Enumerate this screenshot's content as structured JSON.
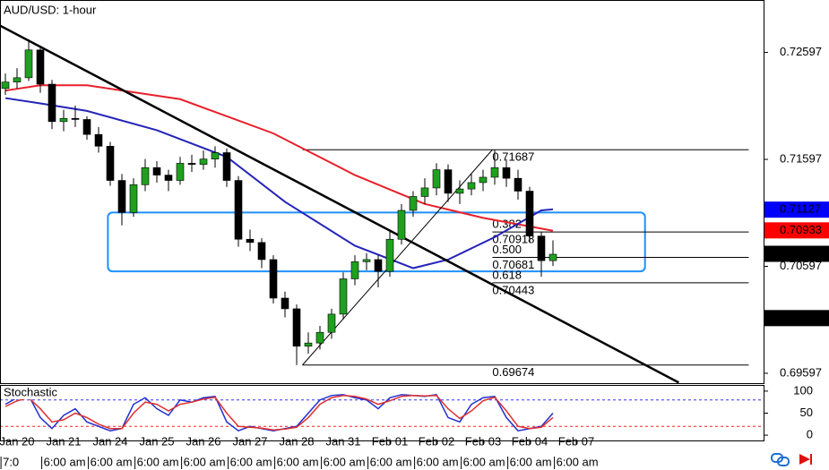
{
  "chart_data": {
    "type": "candlestick",
    "title": "AUD/USD: 1-hour",
    "open": [
      0.7226,
      0.7232,
      0.7236,
      0.7262,
      0.723,
      0.7195,
      0.7198,
      0.7197,
      0.7183,
      0.7172,
      0.714,
      0.711,
      0.7136,
      0.7152,
      0.7145,
      0.714,
      0.7156,
      0.7155,
      0.716,
      0.7166,
      0.714,
      0.7085,
      0.7082,
      0.7066,
      0.703,
      0.702,
      0.6985,
      0.6988,
      0.6998,
      0.7015,
      0.7048,
      0.7064,
      0.7066,
      0.7055,
      0.7085,
      0.7112,
      0.7125,
      0.7133,
      0.715,
      0.7128,
      0.7132,
      0.7138,
      0.7143,
      0.7152,
      0.7142,
      0.713,
      0.7088,
      0.7065
    ],
    "high": [
      0.724,
      0.7245,
      0.7272,
      0.7266,
      0.7234,
      0.7206,
      0.721,
      0.72,
      0.719,
      0.7176,
      0.7146,
      0.7142,
      0.716,
      0.7158,
      0.715,
      0.7162,
      0.7164,
      0.7168,
      0.7172,
      0.717,
      0.7144,
      0.7094,
      0.7086,
      0.707,
      0.7036,
      0.7024,
      0.6998,
      0.7004,
      0.702,
      0.7054,
      0.707,
      0.7072,
      0.707,
      0.7092,
      0.7118,
      0.713,
      0.7142,
      0.7156,
      0.7155,
      0.714,
      0.7146,
      0.715,
      0.71687,
      0.716,
      0.715,
      0.7134,
      0.7092,
      0.7084
    ],
    "low": [
      0.722,
      0.7226,
      0.7233,
      0.7222,
      0.7188,
      0.7186,
      0.719,
      0.7178,
      0.7166,
      0.7135,
      0.7098,
      0.7106,
      0.713,
      0.7138,
      0.713,
      0.7136,
      0.7148,
      0.715,
      0.7152,
      0.7134,
      0.7078,
      0.7074,
      0.7058,
      0.7025,
      0.7012,
      0.69674,
      0.6978,
      0.6982,
      0.6992,
      0.701,
      0.7042,
      0.7056,
      0.704,
      0.705,
      0.708,
      0.7106,
      0.7118,
      0.7126,
      0.712,
      0.7118,
      0.7126,
      0.713,
      0.7136,
      0.7134,
      0.7122,
      0.7082,
      0.705,
      0.706
    ],
    "close": [
      0.7232,
      0.7236,
      0.7262,
      0.723,
      0.7195,
      0.7198,
      0.7197,
      0.7183,
      0.7172,
      0.714,
      0.711,
      0.7136,
      0.7152,
      0.7145,
      0.714,
      0.7156,
      0.7155,
      0.716,
      0.7166,
      0.714,
      0.7085,
      0.7082,
      0.7066,
      0.703,
      0.702,
      0.6985,
      0.6988,
      0.6998,
      0.7015,
      0.7048,
      0.7064,
      0.7066,
      0.7055,
      0.7085,
      0.7112,
      0.7125,
      0.7133,
      0.715,
      0.7128,
      0.7132,
      0.7138,
      0.7143,
      0.7152,
      0.7142,
      0.713,
      0.7088,
      0.7065,
      0.7071
    ],
    "up_color": "#1fa01f",
    "down_color": "#000000",
    "ylim": [
      0.69513,
      0.73087
    ],
    "yticks": [
      0.72597,
      0.71597,
      0.70597,
      0.69597
    ],
    "xticks": [
      {
        "value": 1,
        "label": "Jan 20"
      },
      {
        "value": 5,
        "label": "Jan 21"
      },
      {
        "value": 9,
        "label": "Jan 24"
      },
      {
        "value": 13,
        "label": "Jan 25"
      },
      {
        "value": 17,
        "label": "Jan 26"
      },
      {
        "value": 21,
        "label": "Jan 27"
      },
      {
        "value": 25,
        "label": "Jan 28"
      },
      {
        "value": 29,
        "label": "Jan 31"
      },
      {
        "value": 33,
        "label": "Feb 01"
      },
      {
        "value": 37,
        "label": "Feb 02"
      },
      {
        "value": 41,
        "label": "Feb 03"
      },
      {
        "value": 45,
        "label": "Feb 04"
      },
      {
        "value": 49,
        "label": "Feb 07"
      }
    ],
    "x2ticks": [
      {
        "value": -0.3,
        "label": "7:0"
      },
      {
        "value": 3.2,
        "label": "6:00 am"
      },
      {
        "value": 7.2,
        "label": "6:00 am"
      },
      {
        "value": 11.2,
        "label": "6:00 am"
      },
      {
        "value": 15.2,
        "label": "6:00 am"
      },
      {
        "value": 19.2,
        "label": "6:00 am"
      },
      {
        "value": 23.2,
        "label": "6:00 am"
      },
      {
        "value": 27.2,
        "label": "6:00 am"
      },
      {
        "value": 31.2,
        "label": "6:00 am"
      },
      {
        "value": 35.2,
        "label": "6:00 am"
      },
      {
        "value": 39.2,
        "label": "6:00 am"
      },
      {
        "value": 43.2,
        "label": "6:00 am"
      },
      {
        "value": 47.2,
        "label": "6:00 am"
      }
    ],
    "moving_averages": [
      {
        "color": "#e8202a",
        "x": [
          0,
          3,
          7,
          15,
          23,
          30,
          36,
          41,
          47
        ],
        "values": [
          0.7224,
          0.7229,
          0.7229,
          0.7216,
          0.7184,
          0.7145,
          0.7118,
          0.7105,
          0.7093
        ]
      },
      {
        "color": "#2424b8",
        "x": [
          0,
          3,
          7,
          13,
          19,
          24,
          30,
          35,
          38,
          42,
          46,
          47
        ],
        "values": [
          0.7217,
          0.7212,
          0.7205,
          0.7187,
          0.7162,
          0.712,
          0.7079,
          0.7058,
          0.7066,
          0.7087,
          0.7112,
          0.7113
        ]
      }
    ],
    "trendlines": [
      {
        "color": "#000000",
        "x": [
          -0.5,
          57.8
        ],
        "values": [
          0.7285,
          0.6951
        ]
      },
      {
        "color": "#000000",
        "x": [
          25.5,
          41.8
        ],
        "values": [
          0.69674,
          0.71687
        ]
      }
    ],
    "zone": {
      "color": "#1e90ff",
      "x": [
        8.8,
        54.9
      ],
      "values": [
        0.711,
        0.7055
      ]
    },
    "fibonacci": {
      "x": [
        25.5,
        41.8,
        63.8
      ],
      "levels": [
        0.71687,
        0.70918,
        0.70681,
        0.70443,
        0.69674
      ],
      "ratio_labels": [
        null,
        "0.382",
        "0.500",
        "0.618",
        null
      ]
    },
    "price_tags": [
      {
        "value": 0.71127,
        "color": "#0000ff"
      },
      {
        "value": 0.70933,
        "color": "#ff0000"
      },
      {
        "value": 0.70714,
        "color": "#000000"
      },
      {
        "value": 0.70113,
        "color": "#000000"
      }
    ],
    "stochastic": {
      "title": "Stochastic",
      "ylim": [
        -12,
        114
      ],
      "yticks": [
        0,
        50,
        100
      ],
      "levels": [
        {
          "value": 80,
          "color": "#3030ff"
        },
        {
          "value": 20,
          "color": "#ff2020"
        }
      ],
      "series": [
        {
          "color": "#2030d0",
          "values": [
            70,
            85,
            90,
            40,
            15,
            45,
            60,
            30,
            20,
            10,
            15,
            70,
            85,
            60,
            45,
            80,
            75,
            85,
            88,
            30,
            10,
            20,
            15,
            10,
            15,
            20,
            50,
            80,
            90,
            92,
            85,
            80,
            60,
            85,
            92,
            90,
            88,
            92,
            40,
            30,
            70,
            85,
            88,
            40,
            10,
            15,
            20,
            50
          ]
        },
        {
          "color": "#e03030",
          "values": [
            65,
            78,
            85,
            60,
            30,
            35,
            50,
            40,
            25,
            15,
            15,
            50,
            75,
            70,
            55,
            70,
            75,
            82,
            86,
            50,
            20,
            18,
            16,
            12,
            14,
            18,
            40,
            70,
            85,
            90,
            88,
            82,
            70,
            78,
            88,
            90,
            89,
            90,
            60,
            38,
            55,
            78,
            86,
            55,
            20,
            15,
            18,
            40
          ]
        }
      ]
    }
  }
}
